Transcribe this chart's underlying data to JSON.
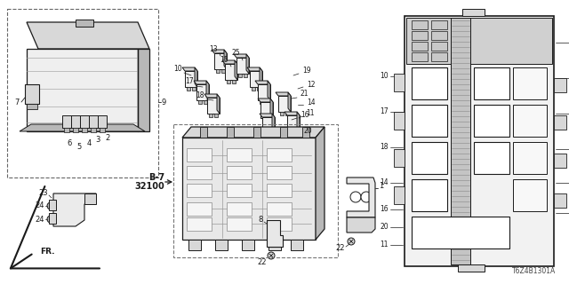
{
  "bg_color": "#ffffff",
  "fig_width": 6.4,
  "fig_height": 3.2,
  "watermark": "T6Z4B1301A",
  "line_color": "#1a1a1a",
  "gray_light": "#d8d8d8",
  "gray_med": "#b8b8b8",
  "gray_dark": "#888888",
  "white": "#ffffff"
}
